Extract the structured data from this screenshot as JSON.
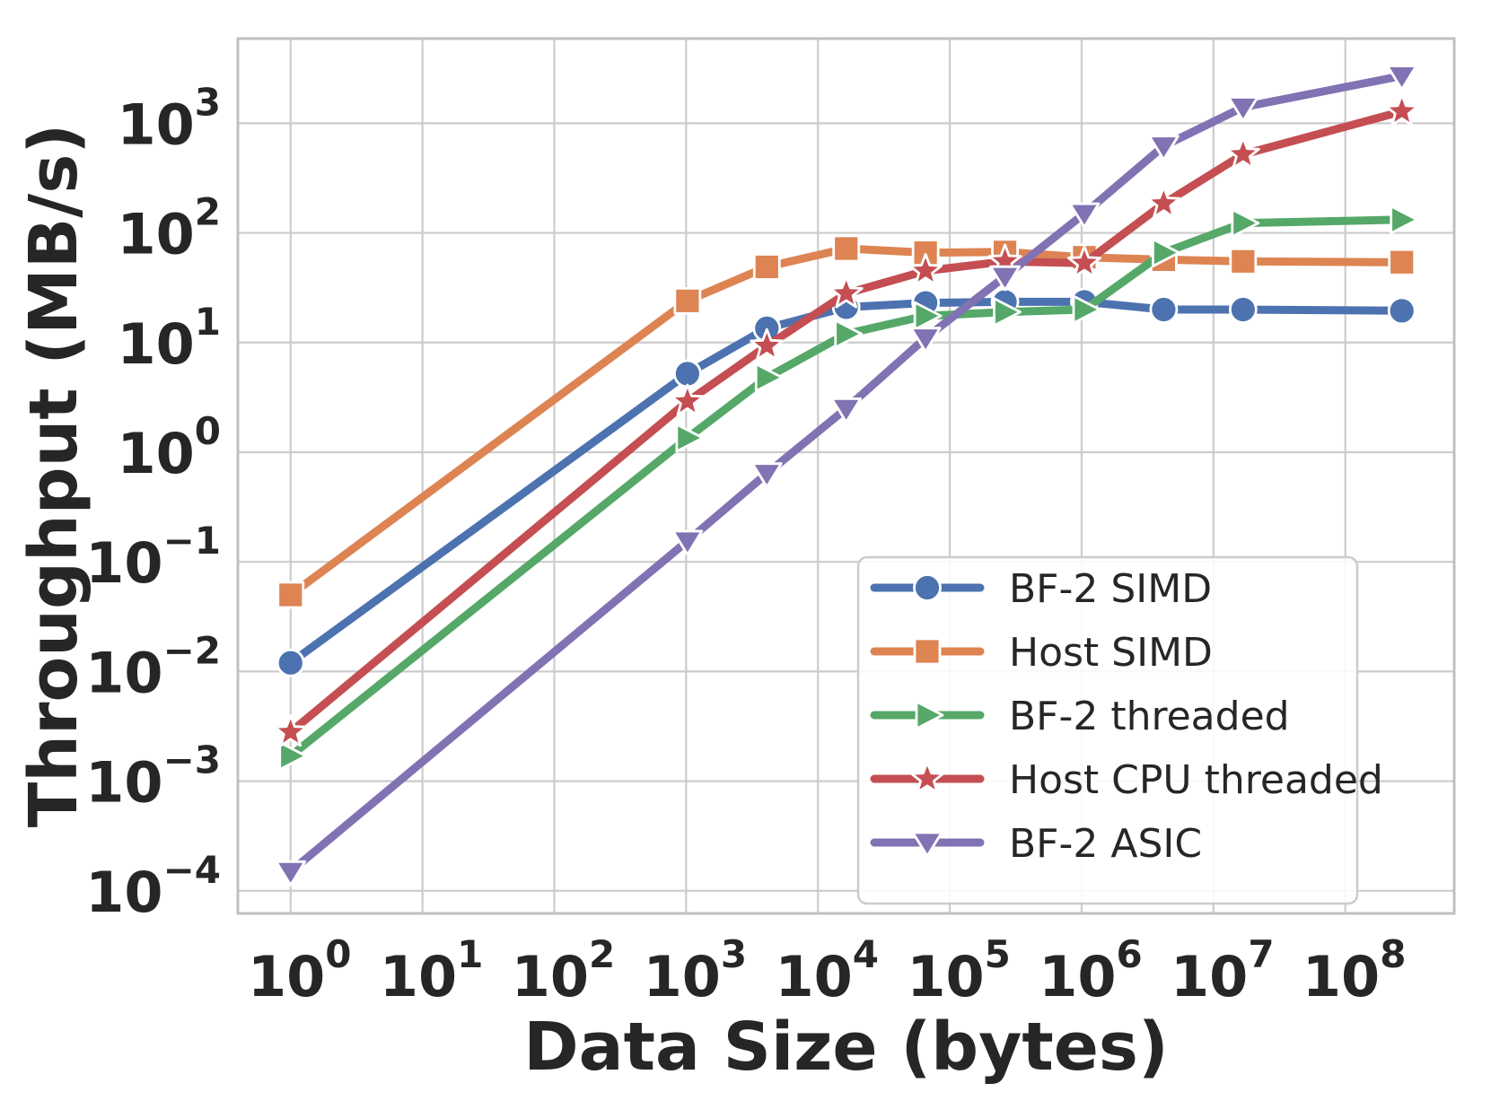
{
  "chart_data": {
    "type": "line",
    "title": "",
    "xlabel": "Data Size (bytes)",
    "ylabel": "Throughput (MB/s)",
    "x_scale": "log",
    "y_scale": "log",
    "grid": true,
    "legend_position": "lower right inside",
    "axes": {
      "x_tick_exponents": [
        0,
        1,
        2,
        3,
        4,
        5,
        6,
        7,
        8
      ],
      "y_tick_exponents": [
        3,
        2,
        1,
        0,
        -1,
        -2,
        -3,
        -4
      ],
      "x_range_exp": [
        -0.4,
        8.826
      ],
      "y_range_exp": [
        -4.206,
        3.772
      ],
      "tick_base": "10"
    },
    "x": [
      1,
      1024,
      4096,
      16384,
      65536,
      262144,
      1048576,
      4194304,
      16777216,
      268435456
    ],
    "series": [
      {
        "name": "BF-2 SIMD",
        "color": "#4C72B0",
        "marker": "circle",
        "values": [
          0.012,
          5.2,
          13.5,
          21,
          23,
          23.5,
          23.5,
          20,
          20,
          19.5
        ]
      },
      {
        "name": "Host SIMD",
        "color": "#DD8452",
        "marker": "square",
        "values": [
          0.05,
          24,
          49,
          72,
          66,
          67,
          60,
          57,
          55,
          54
        ]
      },
      {
        "name": "BF-2 threaded",
        "color": "#55A868",
        "marker": "triangle-right",
        "values": [
          0.0017,
          1.35,
          4.8,
          12,
          17.5,
          19,
          20,
          66,
          123,
          132
        ]
      },
      {
        "name": "Host CPU threaded",
        "color": "#C44E52",
        "marker": "star",
        "values": [
          0.0028,
          2.9,
          9.3,
          28,
          45,
          55,
          53,
          185,
          520,
          1280
        ]
      },
      {
        "name": "BF-2 ASIC",
        "color": "#8172B3",
        "marker": "triangle-down",
        "values": [
          0.00015,
          0.155,
          0.64,
          2.5,
          11,
          40,
          150,
          620,
          1400,
          2700
        ]
      }
    ],
    "style": {
      "grid_color": "#cccccc",
      "spine_color": "#c0c0c0",
      "text_color": "#262626",
      "background": "#ffffff",
      "legend_border": "#cccccc"
    }
  }
}
